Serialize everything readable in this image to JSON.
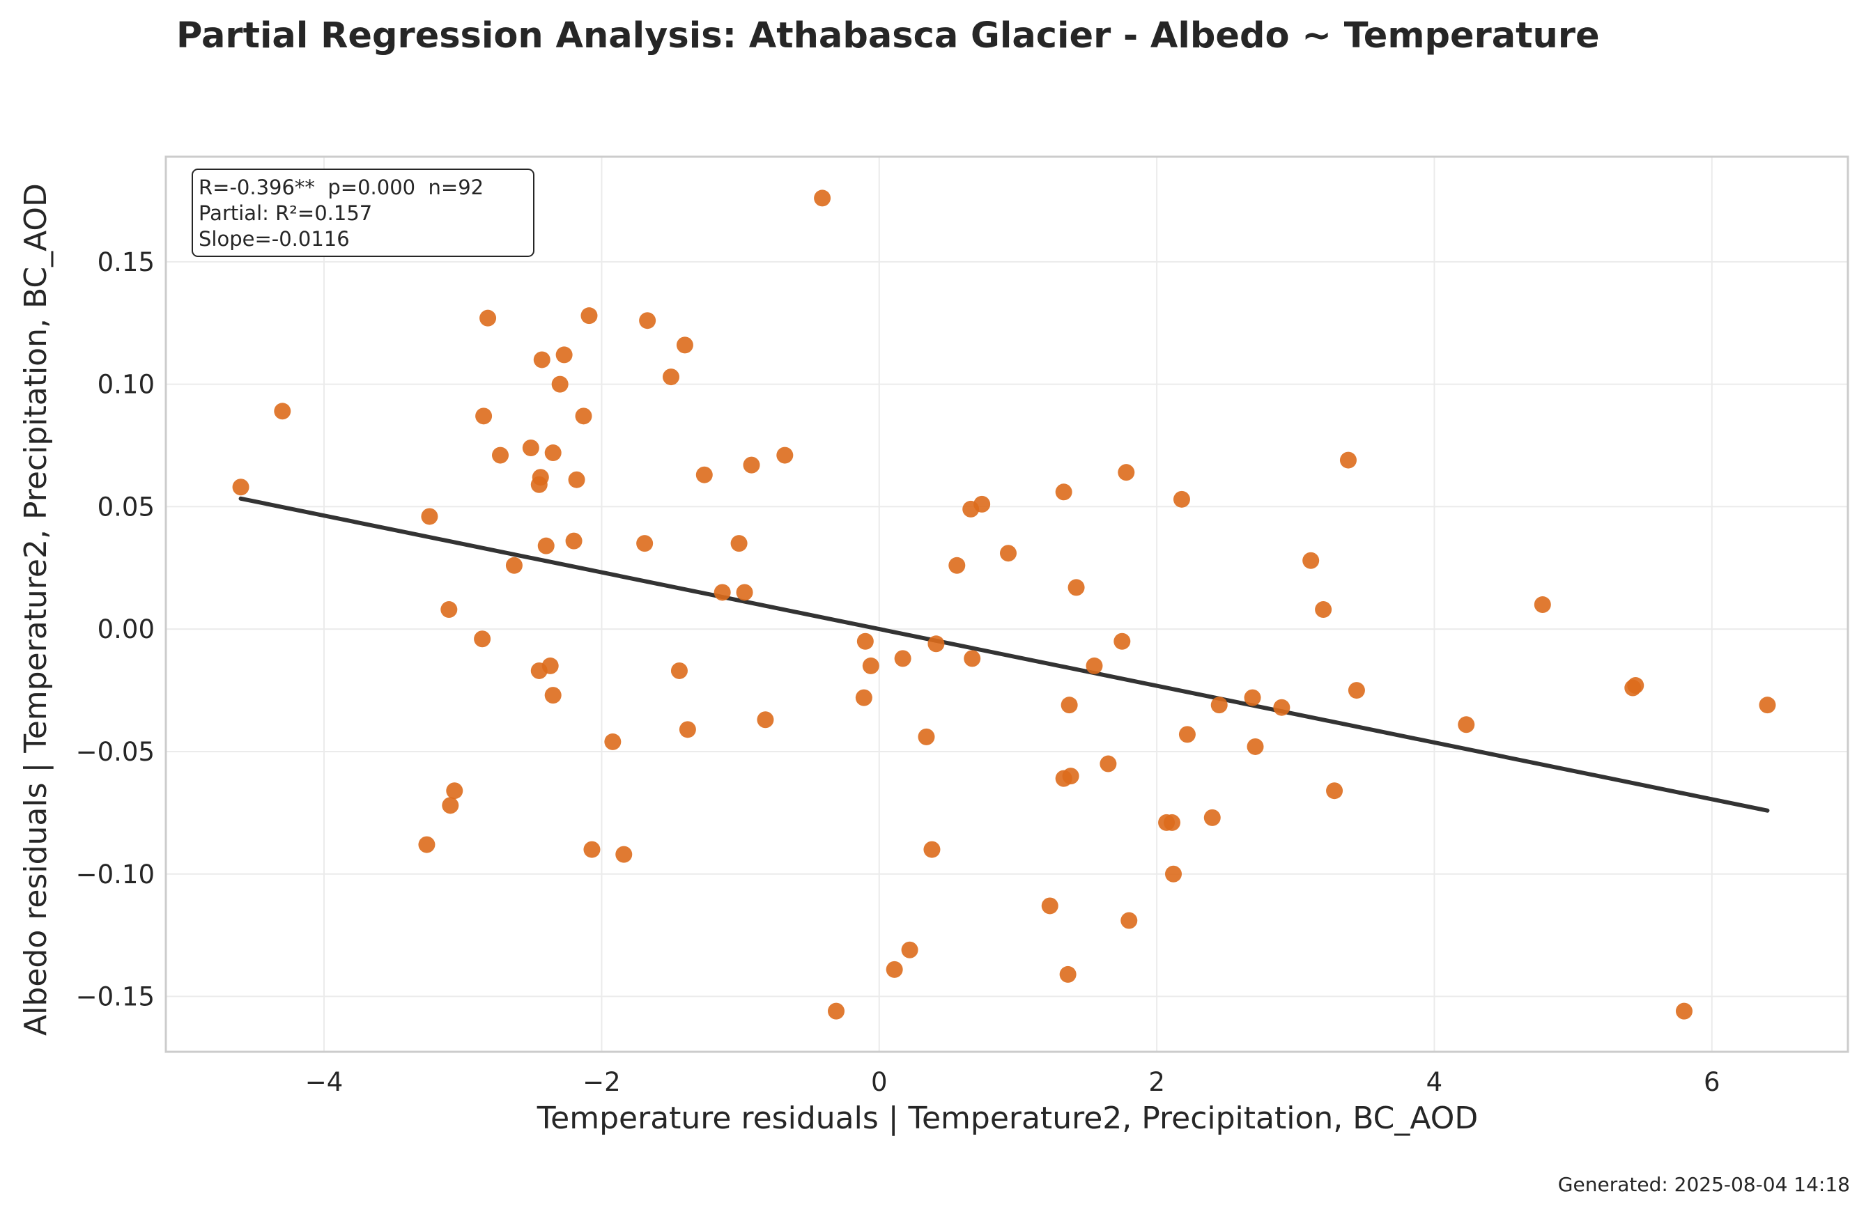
{
  "header": {
    "title": "Partial Regression Analysis: Athabasca Glacier - Albedo ~ Temperature"
  },
  "footer": {
    "generated": "Generated: 2025-08-04 14:18"
  },
  "stats_box": {
    "line1": "R=-0.396**  p=0.000  n=92",
    "line2": "Partial: R²=0.157",
    "line3": "Slope=-0.0116"
  },
  "colors": {
    "points": "#dd6b1c",
    "fit_line": "#333333",
    "grid": "#ebebeb",
    "frame": "#cccccc"
  },
  "chart_data": {
    "type": "scatter",
    "title": "Partial Regression Analysis: Athabasca Glacier - Albedo ~ Temperature",
    "xlabel": "Temperature residuals | Temperature2, Precipitation, BC_AOD",
    "ylabel": "Albedo residuals | Temperature2, Precipitation, BC_AOD",
    "xlim": [
      -5.14,
      6.98
    ],
    "ylim": [
      -0.1726,
      0.1929
    ],
    "x_ticks": [
      -4,
      -2,
      0,
      2,
      4,
      6
    ],
    "x_tick_labels": [
      "−4",
      "−2",
      "0",
      "2",
      "4",
      "6"
    ],
    "y_ticks": [
      -0.15,
      -0.1,
      -0.05,
      0.0,
      0.05,
      0.1,
      0.15
    ],
    "y_tick_labels": [
      "−0.15",
      "−0.10",
      "−0.05",
      "0.00",
      "0.05",
      "0.10",
      "0.15"
    ],
    "grid": true,
    "fit_line": {
      "x": [
        -4.6,
        6.4
      ],
      "y": [
        0.0533,
        -0.0741
      ]
    },
    "points": [
      {
        "x": -4.6,
        "y": 0.058
      },
      {
        "x": -4.3,
        "y": 0.089
      },
      {
        "x": -3.26,
        "y": -0.088
      },
      {
        "x": -3.24,
        "y": 0.046
      },
      {
        "x": -3.1,
        "y": 0.008
      },
      {
        "x": -3.09,
        "y": -0.072
      },
      {
        "x": -3.06,
        "y": -0.066
      },
      {
        "x": -2.86,
        "y": -0.004
      },
      {
        "x": -2.85,
        "y": 0.087
      },
      {
        "x": -2.82,
        "y": 0.127
      },
      {
        "x": -2.73,
        "y": 0.071
      },
      {
        "x": -2.63,
        "y": 0.026
      },
      {
        "x": -2.51,
        "y": 0.074
      },
      {
        "x": -2.45,
        "y": -0.017
      },
      {
        "x": -2.45,
        "y": 0.059
      },
      {
        "x": -2.44,
        "y": 0.062
      },
      {
        "x": -2.43,
        "y": 0.11
      },
      {
        "x": -2.4,
        "y": 0.034
      },
      {
        "x": -2.37,
        "y": -0.015
      },
      {
        "x": -2.35,
        "y": 0.072
      },
      {
        "x": -2.35,
        "y": -0.027
      },
      {
        "x": -2.3,
        "y": 0.1
      },
      {
        "x": -2.27,
        "y": 0.112
      },
      {
        "x": -2.2,
        "y": 0.036
      },
      {
        "x": -2.18,
        "y": 0.061
      },
      {
        "x": -2.13,
        "y": 0.087
      },
      {
        "x": -2.09,
        "y": 0.128
      },
      {
        "x": -2.07,
        "y": -0.09
      },
      {
        "x": -1.92,
        "y": -0.046
      },
      {
        "x": -1.84,
        "y": -0.092
      },
      {
        "x": -1.69,
        "y": 0.035
      },
      {
        "x": -1.67,
        "y": 0.126
      },
      {
        "x": -1.5,
        "y": 0.103
      },
      {
        "x": -1.44,
        "y": -0.017
      },
      {
        "x": -1.4,
        "y": 0.116
      },
      {
        "x": -1.38,
        "y": -0.041
      },
      {
        "x": -1.26,
        "y": 0.063
      },
      {
        "x": -1.13,
        "y": 0.015
      },
      {
        "x": -1.01,
        "y": 0.035
      },
      {
        "x": -0.97,
        "y": 0.015
      },
      {
        "x": -0.92,
        "y": 0.067
      },
      {
        "x": -0.82,
        "y": -0.037
      },
      {
        "x": -0.68,
        "y": 0.071
      },
      {
        "x": -0.41,
        "y": 0.176
      },
      {
        "x": -0.31,
        "y": -0.156
      },
      {
        "x": -0.11,
        "y": -0.028
      },
      {
        "x": -0.1,
        "y": -0.005
      },
      {
        "x": -0.06,
        "y": -0.015
      },
      {
        "x": 0.11,
        "y": -0.139
      },
      {
        "x": 0.17,
        "y": -0.012
      },
      {
        "x": 0.22,
        "y": -0.131
      },
      {
        "x": 0.34,
        "y": -0.044
      },
      {
        "x": 0.38,
        "y": -0.09
      },
      {
        "x": 0.41,
        "y": -0.006
      },
      {
        "x": 0.56,
        "y": 0.026
      },
      {
        "x": 0.66,
        "y": 0.049
      },
      {
        "x": 0.67,
        "y": -0.012
      },
      {
        "x": 0.74,
        "y": 0.051
      },
      {
        "x": 0.93,
        "y": 0.031
      },
      {
        "x": 1.23,
        "y": -0.113
      },
      {
        "x": 1.33,
        "y": -0.061
      },
      {
        "x": 1.33,
        "y": 0.056
      },
      {
        "x": 1.36,
        "y": -0.141
      },
      {
        "x": 1.37,
        "y": -0.031
      },
      {
        "x": 1.38,
        "y": -0.06
      },
      {
        "x": 1.42,
        "y": 0.017
      },
      {
        "x": 1.55,
        "y": -0.015
      },
      {
        "x": 1.65,
        "y": -0.055
      },
      {
        "x": 1.75,
        "y": -0.005
      },
      {
        "x": 1.78,
        "y": 0.064
      },
      {
        "x": 1.8,
        "y": -0.119
      },
      {
        "x": 2.07,
        "y": -0.079
      },
      {
        "x": 2.11,
        "y": -0.079
      },
      {
        "x": 2.12,
        "y": -0.1
      },
      {
        "x": 2.18,
        "y": 0.053
      },
      {
        "x": 2.22,
        "y": -0.043
      },
      {
        "x": 2.4,
        "y": -0.077
      },
      {
        "x": 2.45,
        "y": -0.031
      },
      {
        "x": 2.69,
        "y": -0.028
      },
      {
        "x": 2.71,
        "y": -0.048
      },
      {
        "x": 2.9,
        "y": -0.032
      },
      {
        "x": 3.11,
        "y": 0.028
      },
      {
        "x": 3.2,
        "y": 0.008
      },
      {
        "x": 3.28,
        "y": -0.066
      },
      {
        "x": 3.38,
        "y": 0.069
      },
      {
        "x": 3.44,
        "y": -0.025
      },
      {
        "x": 4.23,
        "y": -0.039
      },
      {
        "x": 4.78,
        "y": 0.01
      },
      {
        "x": 5.43,
        "y": -0.024
      },
      {
        "x": 5.45,
        "y": -0.023
      },
      {
        "x": 5.8,
        "y": -0.156
      },
      {
        "x": 6.4,
        "y": -0.031
      }
    ]
  }
}
